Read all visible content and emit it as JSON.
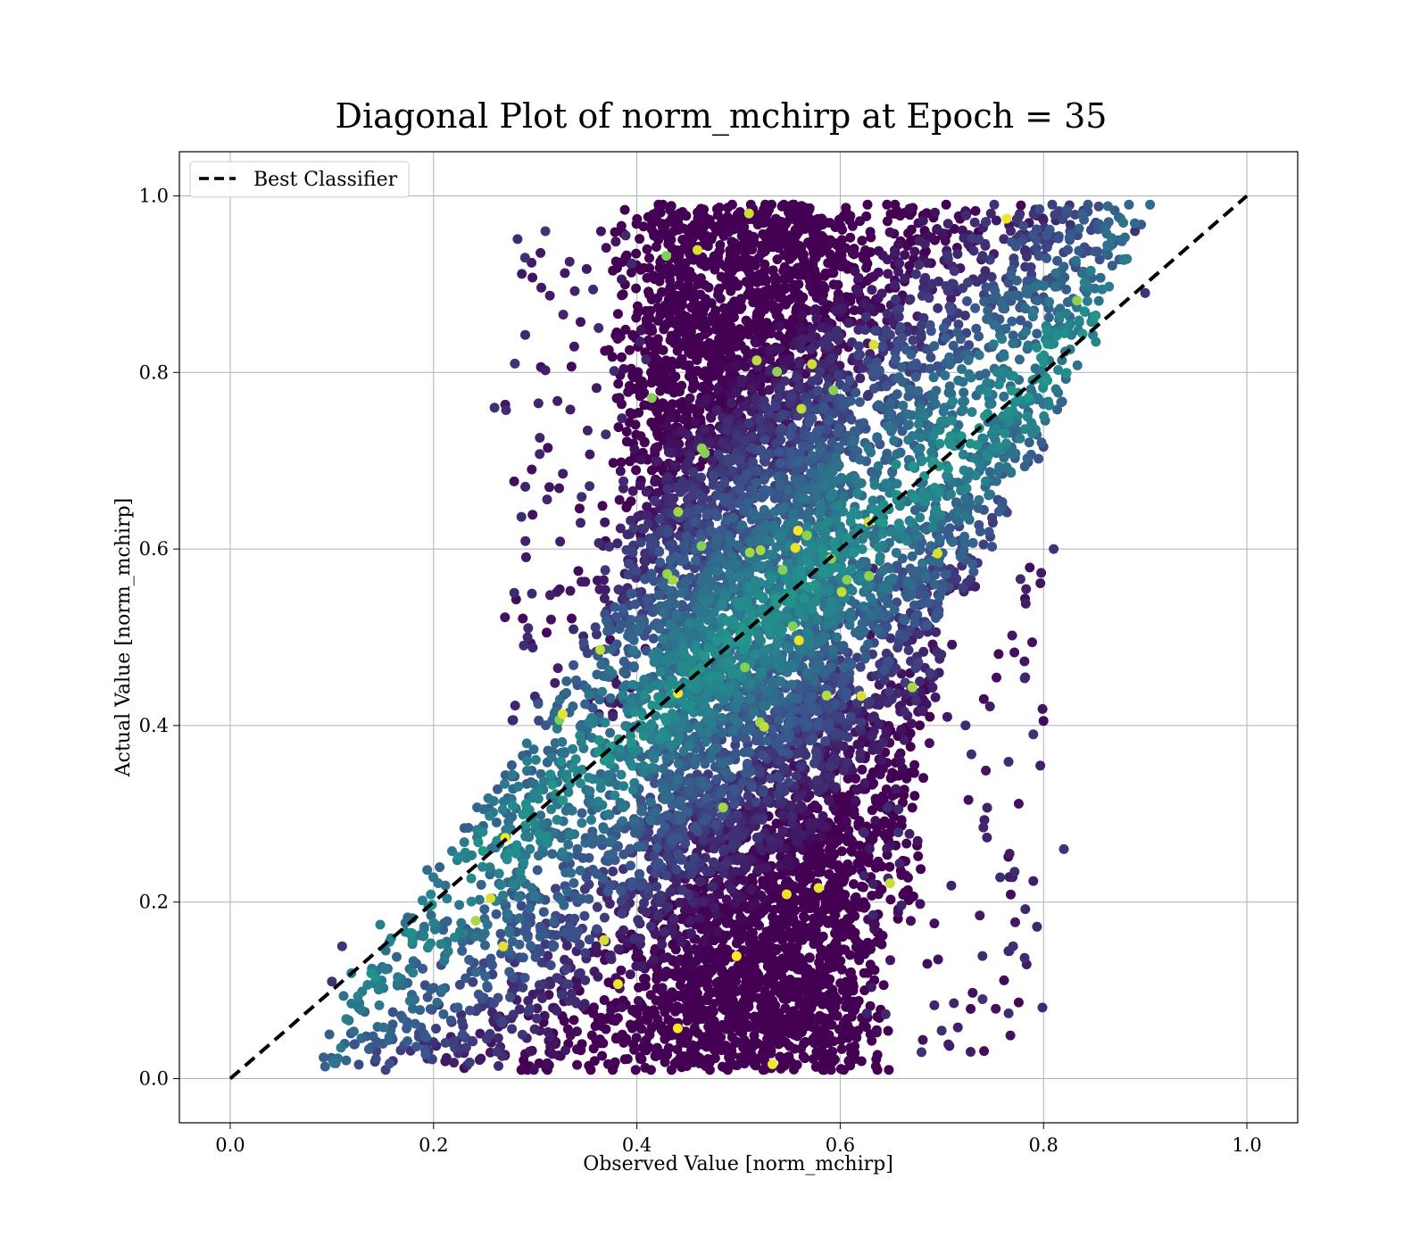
{
  "chart_data": {
    "type": "scatter",
    "title": "Diagonal Plot of norm_mchirp at Epoch = 35",
    "xlabel": "Observed Value [norm_mchirp]",
    "ylabel": "Actual Value [norm_mchirp]",
    "xlim": [
      -0.05,
      1.05
    ],
    "ylim": [
      -0.05,
      1.05
    ],
    "xticks": [
      "0.0",
      "0.2",
      "0.4",
      "0.6",
      "0.8",
      "1.0"
    ],
    "yticks": [
      "0.0",
      "0.2",
      "0.4",
      "0.6",
      "0.8",
      "1.0"
    ],
    "xtick_values": [
      0.0,
      0.2,
      0.4,
      0.6,
      0.8,
      1.0
    ],
    "ytick_values": [
      0.0,
      0.2,
      0.4,
      0.6,
      0.8,
      1.0
    ],
    "grid": true,
    "legend": {
      "placement": "top-left",
      "entries": [
        "Best Classifier"
      ]
    },
    "reference_line": {
      "name": "Best Classifier",
      "x": [
        0.0,
        1.0
      ],
      "y": [
        0.0,
        1.0
      ],
      "style": "dashed",
      "color": "#000000"
    },
    "colormap": "viridis",
    "point_color_range": [
      "#440154",
      "#3b528b",
      "#21918c",
      "#5ec962",
      "#fde725"
    ],
    "scatter_regions": [
      {
        "x_range": [
          0.4,
          0.62
        ],
        "y_range": [
          0.01,
          0.99
        ],
        "density": "very high",
        "color": "#440154"
      },
      {
        "x_range": [
          0.2,
          0.6
        ],
        "y_range": [
          0.05,
          0.6
        ],
        "density": "high",
        "color": "#3b528b"
      },
      {
        "x_range": [
          0.6,
          0.9
        ],
        "y_range": [
          0.55,
          0.99
        ],
        "density": "high",
        "color": "#31688e"
      },
      {
        "x_range": [
          0.09,
          0.3
        ],
        "y_range": [
          0.01,
          0.3
        ],
        "density": "medium",
        "color": "#21918c"
      },
      {
        "x_range": [
          0.62,
          0.82
        ],
        "y_range": [
          0.03,
          0.55
        ],
        "density": "low",
        "color": "#440154"
      },
      {
        "x_range": [
          0.28,
          0.4
        ],
        "y_range": [
          0.4,
          0.96
        ],
        "density": "low",
        "color": "#440154"
      }
    ],
    "notable_points": [
      {
        "x": 0.31,
        "y": 0.96
      },
      {
        "x": 0.29,
        "y": 0.93
      },
      {
        "x": 0.28,
        "y": 0.81
      },
      {
        "x": 0.26,
        "y": 0.76
      },
      {
        "x": 0.82,
        "y": 0.26
      },
      {
        "x": 0.79,
        "y": 0.39
      },
      {
        "x": 0.77,
        "y": 0.15
      },
      {
        "x": 0.74,
        "y": 0.09
      },
      {
        "x": 0.16,
        "y": 0.02
      },
      {
        "x": 0.1,
        "y": 0.11
      },
      {
        "x": 0.11,
        "y": 0.15
      },
      {
        "x": 0.9,
        "y": 0.89
      },
      {
        "x": 0.89,
        "y": 0.96
      },
      {
        "x": 0.81,
        "y": 0.6
      },
      {
        "x": 0.68,
        "y": 0.03
      }
    ]
  }
}
